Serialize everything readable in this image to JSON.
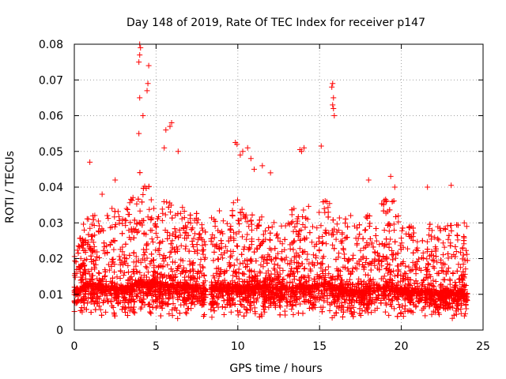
{
  "chart_data": {
    "type": "scatter",
    "title": "Day 148 of 2019, Rate Of TEC Index for receiver p147",
    "xlabel": "GPS time / hours",
    "ylabel": "ROTI / TECUs",
    "xlim": [
      0,
      25
    ],
    "ylim": [
      0,
      0.08
    ],
    "grid": true,
    "marker": "+",
    "color": "#ff0000",
    "x_ticks": [
      0,
      5,
      10,
      15,
      20,
      25
    ],
    "x_tick_labels": [
      "0",
      "5",
      "10",
      "15",
      "20",
      "25"
    ],
    "y_ticks": [
      0,
      0.01,
      0.02,
      0.03,
      0.04,
      0.05,
      0.06,
      0.07,
      0.08
    ],
    "y_tick_labels": [
      "0",
      "0.01",
      "0.02",
      "0.03",
      "0.04",
      "0.05",
      "0.06",
      "0.07",
      "0.08"
    ],
    "data_gaps_hours": [
      [
        8.05,
        8.35
      ]
    ],
    "sample_points": [
      [
        4.0,
        0.08
      ],
      [
        4.05,
        0.079
      ],
      [
        4.0,
        0.077
      ],
      [
        3.95,
        0.075
      ],
      [
        4.55,
        0.074
      ],
      [
        4.5,
        0.069
      ],
      [
        4.45,
        0.067
      ],
      [
        4.0,
        0.065
      ],
      [
        4.2,
        0.06
      ],
      [
        5.95,
        0.058
      ],
      [
        5.85,
        0.057
      ],
      [
        5.6,
        0.056
      ],
      [
        3.95,
        0.055
      ],
      [
        5.5,
        0.051
      ],
      [
        6.35,
        0.05
      ],
      [
        0.95,
        0.047
      ],
      [
        15.8,
        0.069
      ],
      [
        15.75,
        0.068
      ],
      [
        15.85,
        0.065
      ],
      [
        15.8,
        0.063
      ],
      [
        15.85,
        0.062
      ],
      [
        15.9,
        0.06
      ],
      [
        15.1,
        0.0515
      ],
      [
        9.85,
        0.0525
      ],
      [
        9.95,
        0.052
      ],
      [
        10.3,
        0.05
      ],
      [
        10.15,
        0.049
      ],
      [
        10.6,
        0.051
      ],
      [
        10.8,
        0.048
      ],
      [
        13.8,
        0.0505
      ],
      [
        13.9,
        0.05
      ],
      [
        14.05,
        0.051
      ],
      [
        11.0,
        0.045
      ],
      [
        11.5,
        0.046
      ],
      [
        12.0,
        0.044
      ],
      [
        18.0,
        0.042
      ],
      [
        19.35,
        0.043
      ],
      [
        19.6,
        0.04
      ],
      [
        21.6,
        0.04
      ],
      [
        23.05,
        0.0405
      ],
      [
        23.85,
        0.03
      ],
      [
        24.0,
        0.029
      ],
      [
        2.5,
        0.042
      ],
      [
        1.7,
        0.038
      ],
      [
        3.2,
        0.034
      ],
      [
        7.5,
        0.03
      ]
    ],
    "density_profile_hours": [
      [
        0.0,
        0.0105,
        0.006
      ],
      [
        0.5,
        0.012,
        0.009
      ],
      [
        1.0,
        0.013,
        0.011
      ],
      [
        1.5,
        0.0125,
        0.011
      ],
      [
        2.0,
        0.012,
        0.011
      ],
      [
        2.5,
        0.012,
        0.012
      ],
      [
        3.0,
        0.0115,
        0.011
      ],
      [
        3.5,
        0.0125,
        0.014
      ],
      [
        4.0,
        0.014,
        0.018
      ],
      [
        4.5,
        0.013,
        0.015
      ],
      [
        5.0,
        0.013,
        0.014
      ],
      [
        5.5,
        0.0125,
        0.013
      ],
      [
        6.0,
        0.0125,
        0.013
      ],
      [
        6.5,
        0.0125,
        0.012
      ],
      [
        7.0,
        0.012,
        0.011
      ],
      [
        7.5,
        0.012,
        0.011
      ],
      [
        8.0,
        0.0115,
        0.009
      ],
      [
        8.5,
        0.0115,
        0.011
      ],
      [
        9.0,
        0.012,
        0.012
      ],
      [
        9.5,
        0.012,
        0.012
      ],
      [
        10.0,
        0.012,
        0.013
      ],
      [
        10.5,
        0.012,
        0.012
      ],
      [
        11.0,
        0.0125,
        0.012
      ],
      [
        11.5,
        0.012,
        0.011
      ],
      [
        12.0,
        0.012,
        0.011
      ],
      [
        12.5,
        0.0115,
        0.011
      ],
      [
        13.0,
        0.012,
        0.011
      ],
      [
        13.5,
        0.012,
        0.012
      ],
      [
        14.0,
        0.012,
        0.012
      ],
      [
        14.5,
        0.012,
        0.012
      ],
      [
        15.0,
        0.013,
        0.013
      ],
      [
        15.5,
        0.013,
        0.013
      ],
      [
        16.0,
        0.012,
        0.013
      ],
      [
        16.5,
        0.0115,
        0.012
      ],
      [
        17.0,
        0.011,
        0.011
      ],
      [
        17.5,
        0.011,
        0.01
      ],
      [
        18.0,
        0.0115,
        0.011
      ],
      [
        18.5,
        0.012,
        0.012
      ],
      [
        19.0,
        0.012,
        0.013
      ],
      [
        19.5,
        0.012,
        0.013
      ],
      [
        20.0,
        0.011,
        0.011
      ],
      [
        20.5,
        0.0105,
        0.01
      ],
      [
        21.0,
        0.0105,
        0.01
      ],
      [
        21.5,
        0.011,
        0.011
      ],
      [
        22.0,
        0.0105,
        0.01
      ],
      [
        22.5,
        0.0105,
        0.01
      ],
      [
        23.0,
        0.0105,
        0.01
      ],
      [
        23.5,
        0.0105,
        0.01
      ],
      [
        24.0,
        0.01,
        0.008
      ]
    ]
  }
}
